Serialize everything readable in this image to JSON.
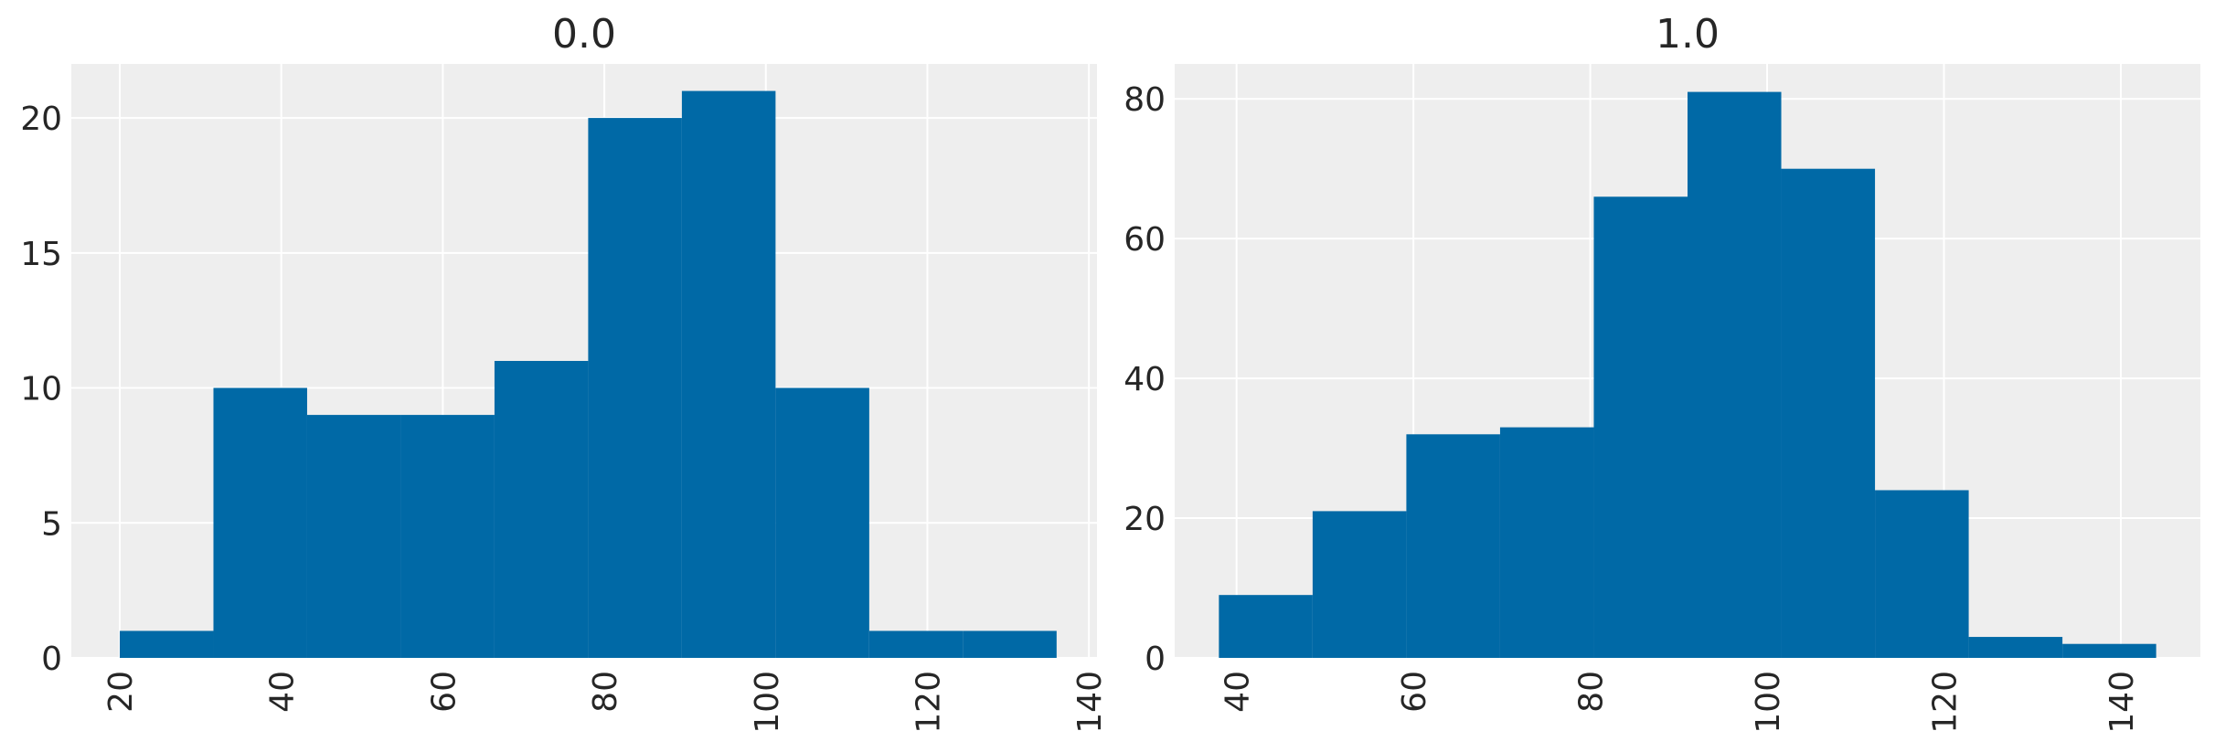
{
  "chart_data": [
    {
      "type": "bar",
      "title": "0.0",
      "xlabel": "",
      "ylabel": "",
      "bin_edges": [
        20.0,
        31.6,
        43.2,
        54.8,
        66.4,
        78.0,
        89.6,
        101.2,
        112.8,
        124.4,
        136.0
      ],
      "values": [
        1,
        10,
        9,
        9,
        11,
        20,
        21,
        10,
        1,
        1
      ],
      "xlim": [
        14.0,
        141.0
      ],
      "ylim": [
        0,
        22
      ],
      "xticks": [
        20,
        40,
        60,
        80,
        100,
        120,
        140
      ],
      "yticks": [
        0,
        5,
        10,
        15,
        20
      ],
      "grid": true,
      "color": "#0069a6"
    },
    {
      "type": "bar",
      "title": "1.0",
      "xlabel": "",
      "ylabel": "",
      "bin_edges": [
        38.0,
        48.6,
        59.2,
        69.8,
        80.4,
        91.0,
        101.6,
        112.2,
        122.8,
        133.4,
        144.0
      ],
      "values": [
        9,
        21,
        32,
        33,
        66,
        81,
        70,
        24,
        3,
        2
      ],
      "xlim": [
        33.0,
        149.0
      ],
      "ylim": [
        0,
        85
      ],
      "xticks": [
        40,
        60,
        80,
        100,
        120,
        140
      ],
      "yticks": [
        0,
        20,
        40,
        60,
        80
      ],
      "grid": true,
      "color": "#0069a6"
    }
  ]
}
